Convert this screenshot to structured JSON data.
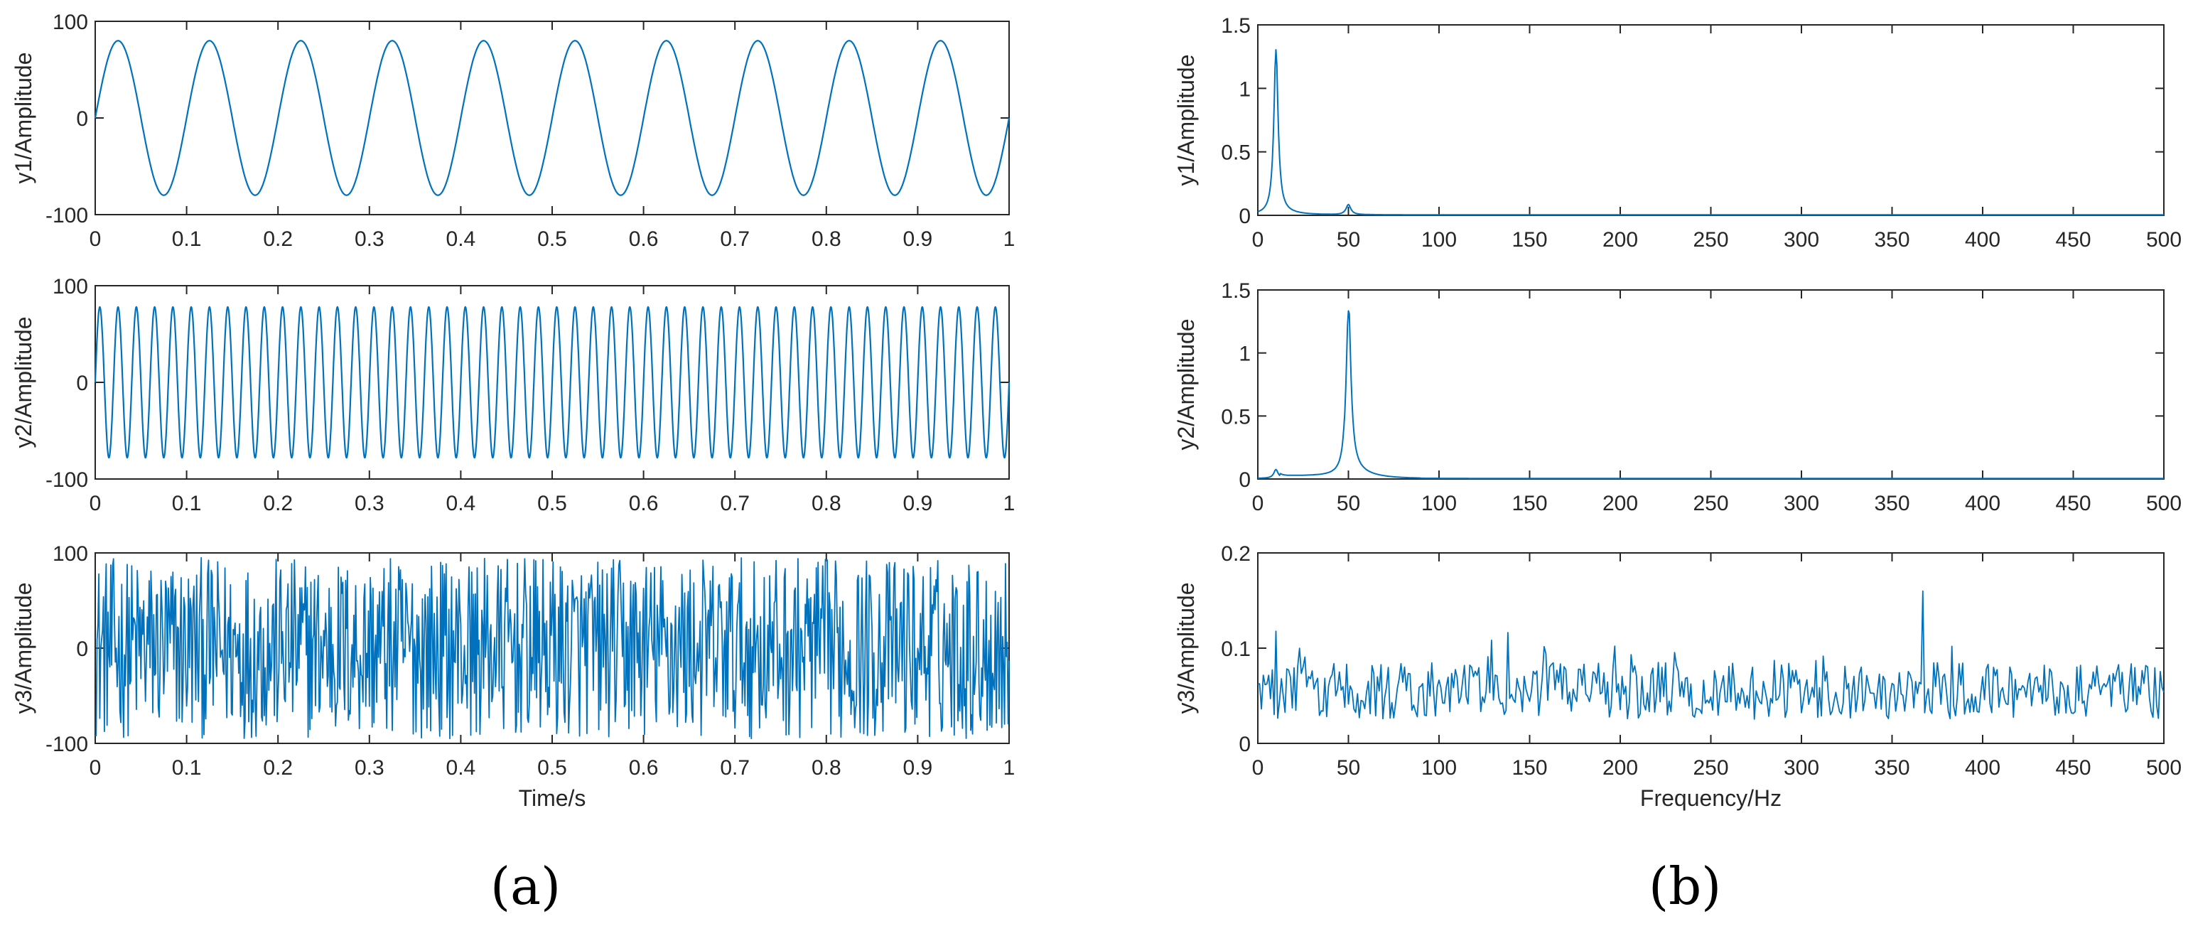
{
  "panels": [
    {
      "label": "(a)"
    },
    {
      "label": "(b)"
    }
  ],
  "colors": {
    "line": "#0072BD",
    "axis": "#262626"
  },
  "chart_data": [
    {
      "id": "a1",
      "type": "line",
      "panel": "(a)",
      "ylabel": "y1/Amplitude",
      "xlabel": "",
      "xlim": [
        0,
        1
      ],
      "ylim": [
        -100,
        100
      ],
      "xticks": [
        "0",
        "0.1",
        "0.2",
        "0.3",
        "0.4",
        "0.5",
        "0.6",
        "0.7",
        "0.8",
        "0.9",
        "1"
      ],
      "yticks": [
        "-100",
        "0",
        "100"
      ],
      "series": [
        {
          "signal": "sine",
          "amplitude": 80,
          "frequency_hz": 10
        }
      ]
    },
    {
      "id": "a2",
      "type": "line",
      "panel": "(a)",
      "ylabel": "y2/Amplitude",
      "xlabel": "",
      "xlim": [
        0,
        1
      ],
      "ylim": [
        -100,
        100
      ],
      "xticks": [
        "0",
        "0.1",
        "0.2",
        "0.3",
        "0.4",
        "0.5",
        "0.6",
        "0.7",
        "0.8",
        "0.9",
        "1"
      ],
      "yticks": [
        "-100",
        "0",
        "100"
      ],
      "series": [
        {
          "signal": "sine",
          "amplitude": 78,
          "frequency_hz": 50
        }
      ]
    },
    {
      "id": "a3",
      "type": "line",
      "panel": "(a)",
      "ylabel": "y3/Amplitude",
      "xlabel": "Time/s",
      "xlim": [
        0,
        1
      ],
      "ylim": [
        -100,
        100
      ],
      "xticks": [
        "0",
        "0.1",
        "0.2",
        "0.3",
        "0.4",
        "0.5",
        "0.6",
        "0.7",
        "0.8",
        "0.9",
        "1"
      ],
      "yticks": [
        "-100",
        "0",
        "100"
      ],
      "series": [
        {
          "signal": "random noise",
          "range": [
            -100,
            100
          ]
        }
      ]
    },
    {
      "id": "b1",
      "type": "line",
      "panel": "(b)",
      "ylabel": "y1/Amplitude",
      "xlabel": "",
      "xlim": [
        0,
        500
      ],
      "ylim": [
        0,
        1.5
      ],
      "xticks": [
        "0",
        "50",
        "100",
        "150",
        "200",
        "250",
        "300",
        "350",
        "400",
        "450",
        "500"
      ],
      "yticks": [
        "0",
        "0.5",
        "1",
        "1.5"
      ],
      "series": [
        {
          "peaks": [
            {
              "x": 10,
              "y": 1.3
            },
            {
              "x": 50,
              "y": 0.08
            }
          ]
        }
      ]
    },
    {
      "id": "b2",
      "type": "line",
      "panel": "(b)",
      "ylabel": "y2/Amplitude",
      "xlabel": "",
      "xlim": [
        0,
        500
      ],
      "ylim": [
        0,
        1.5
      ],
      "xticks": [
        "0",
        "50",
        "100",
        "150",
        "200",
        "250",
        "300",
        "350",
        "400",
        "450",
        "500"
      ],
      "yticks": [
        "0",
        "0.5",
        "1",
        "1.5"
      ],
      "series": [
        {
          "peaks": [
            {
              "x": 10,
              "y": 0.07
            },
            {
              "x": 50,
              "y": 1.33
            }
          ]
        }
      ]
    },
    {
      "id": "b3",
      "type": "line",
      "panel": "(b)",
      "ylabel": "y3/Amplitude",
      "xlabel": "Frequency/Hz",
      "xlim": [
        0,
        500
      ],
      "ylim": [
        0,
        0.2
      ],
      "xticks": [
        "0",
        "50",
        "100",
        "150",
        "200",
        "250",
        "300",
        "350",
        "400",
        "450",
        "500"
      ],
      "yticks": [
        "0",
        "0.1",
        "0.2"
      ],
      "series": [
        {
          "signal": "noise spectrum",
          "typical_range": [
            0.02,
            0.1
          ],
          "max_peak": {
            "x": 367,
            "y": 0.16
          }
        }
      ]
    }
  ]
}
